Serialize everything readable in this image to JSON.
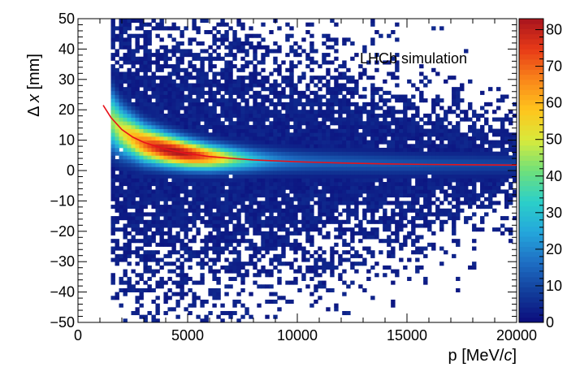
{
  "chart_data": {
    "type": "heatmap",
    "annotation": "LHCb simulation",
    "xlabel_main": "p [MeV/",
    "xlabel_italic": "c",
    "xlabel_end": "]",
    "ylabel_main": "Δ ",
    "ylabel_italic": "x",
    "ylabel_end": " [mm]",
    "xlim": [
      0,
      20000
    ],
    "ylim": [
      -50,
      50
    ],
    "zlim": [
      0,
      83
    ],
    "x_ticks": [
      0,
      5000,
      10000,
      15000,
      20000
    ],
    "x_tick_labels": [
      "0",
      "5000",
      "10000",
      "15000",
      "20000"
    ],
    "y_ticks": [
      -50,
      -40,
      -30,
      -20,
      -10,
      0,
      10,
      20,
      30,
      40,
      50
    ],
    "y_tick_labels": [
      "−50",
      "−40",
      "−30",
      "−20",
      "−10",
      "0",
      "10",
      "20",
      "30",
      "40",
      "50"
    ],
    "z_ticks": [
      0,
      10,
      20,
      30,
      40,
      50,
      60,
      70,
      80
    ],
    "z_tick_labels": [
      "0",
      "10",
      "20",
      "30",
      "40",
      "50",
      "60",
      "70",
      "80"
    ],
    "band": {
      "p_min": 1500,
      "p_peak": 4500,
      "center": [
        {
          "p": 1500,
          "dx": 17
        },
        {
          "p": 2000,
          "dx": 13
        },
        {
          "p": 3000,
          "dx": 9
        },
        {
          "p": 4000,
          "dx": 7
        },
        {
          "p": 5000,
          "dx": 5.5
        },
        {
          "p": 6000,
          "dx": 4.5
        },
        {
          "p": 8000,
          "dx": 3.5
        },
        {
          "p": 10000,
          "dx": 3
        },
        {
          "p": 15000,
          "dx": 2.2
        },
        {
          "p": 20000,
          "dx": 2
        }
      ],
      "peak_density": 82
    },
    "fit_curve": {
      "color": "#e8121a",
      "points": [
        {
          "p": 1150,
          "dx": 21.5
        },
        {
          "p": 1500,
          "dx": 17.5
        },
        {
          "p": 2000,
          "dx": 13.5
        },
        {
          "p": 2500,
          "dx": 11
        },
        {
          "p": 3000,
          "dx": 9.3
        },
        {
          "p": 4000,
          "dx": 7
        },
        {
          "p": 5000,
          "dx": 5.6
        },
        {
          "p": 6000,
          "dx": 4.6
        },
        {
          "p": 7000,
          "dx": 4
        },
        {
          "p": 8000,
          "dx": 3.5
        },
        {
          "p": 10000,
          "dx": 2.9
        },
        {
          "p": 12000,
          "dx": 2.5
        },
        {
          "p": 14000,
          "dx": 2.2
        },
        {
          "p": 16000,
          "dx": 2.0
        },
        {
          "p": 18000,
          "dx": 1.9
        },
        {
          "p": 20000,
          "dx": 1.8
        }
      ]
    },
    "palette": [
      "#0b0c7c",
      "#123d9a",
      "#1e6fc4",
      "#24a8dc",
      "#2cd0c8",
      "#6fe07a",
      "#d8ea3c",
      "#ffc51c",
      "#f9861a",
      "#e83a17",
      "#a8141e"
    ]
  }
}
